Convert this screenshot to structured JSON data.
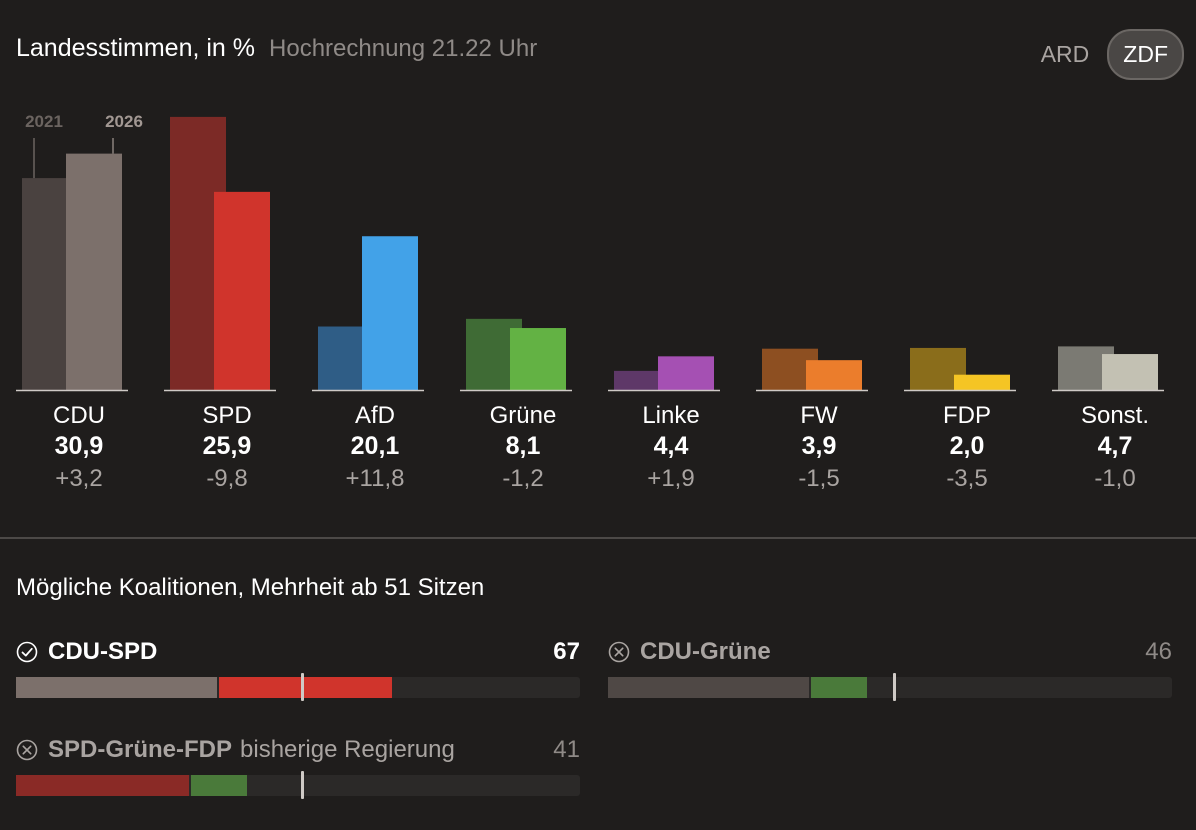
{
  "header": {
    "title": "Landesstimmen, in %",
    "subtitle": "Hochrechnung 21.22 Uhr"
  },
  "toggle": {
    "options": [
      "ARD",
      "ZDF"
    ],
    "active": "ZDF"
  },
  "chart_data": {
    "type": "bar",
    "title": "Landesstimmen, in %",
    "subtitle": "Hochrechnung 21.22 Uhr",
    "series_labels": [
      "2021",
      "2026"
    ],
    "categories": [
      "CDU",
      "SPD",
      "AfD",
      "Grüne",
      "Linke",
      "FW",
      "FDP",
      "Sonst."
    ],
    "series": [
      {
        "name": "2021",
        "values": [
          27.7,
          35.7,
          8.3,
          9.3,
          2.5,
          5.4,
          5.5,
          5.7
        ]
      },
      {
        "name": "2026",
        "values": [
          30.9,
          25.9,
          20.1,
          8.1,
          4.4,
          3.9,
          2.0,
          4.7
        ]
      }
    ],
    "value_labels": [
      "30,9",
      "25,9",
      "20,1",
      "8,1",
      "4,4",
      "3,9",
      "2,0",
      "4,7"
    ],
    "diff_labels": [
      "+3,2",
      "-9,8",
      "+11,8",
      "-1,2",
      "+1,9",
      "-1,5",
      "-3,5",
      "-1,0"
    ],
    "colors_2021": [
      "#4a4240",
      "#7c2a26",
      "#2f5d86",
      "#3f6b35",
      "#5e3868",
      "#8d4f21",
      "#8a6d1b",
      "#7b7a73"
    ],
    "colors_2026": [
      "#7c706b",
      "#d0342c",
      "#42a2e8",
      "#63b244",
      "#a550b3",
      "#eb7d2c",
      "#f5c524",
      "#c3c1b3"
    ],
    "ylim": [
      0,
      36
    ]
  },
  "coalitions": {
    "title": "Mögliche Koalitionen, Mehrheit ab 51 Sitzen",
    "majority": 51,
    "total_seats": 101,
    "items": [
      {
        "name": "CDU-SPD",
        "note": "",
        "seats": "67",
        "status": "yes",
        "segments": [
          {
            "party": "CDU",
            "seats": 36,
            "color": "#7c706b"
          },
          {
            "party": "SPD",
            "seats": 31,
            "color": "#d0342c"
          }
        ]
      },
      {
        "name": "CDU-Grüne",
        "note": "",
        "seats": "46",
        "status": "no",
        "segments": [
          {
            "party": "CDU",
            "seats": 36,
            "color": "#4f4845"
          },
          {
            "party": "Grüne",
            "seats": 10,
            "color": "#4a7a3a"
          }
        ]
      },
      {
        "name": "SPD-Grüne-FDP",
        "note": "bisherige Regierung",
        "seats": "41",
        "status": "no",
        "segments": [
          {
            "party": "SPD",
            "seats": 31,
            "color": "#8a2a26"
          },
          {
            "party": "Grüne",
            "seats": 10,
            "color": "#4a7a3a"
          }
        ]
      }
    ]
  }
}
